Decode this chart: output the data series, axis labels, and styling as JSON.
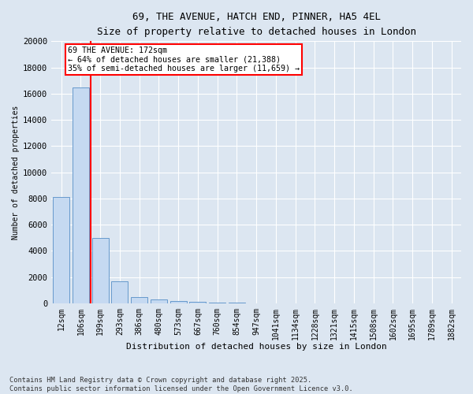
{
  "title_line1": "69, THE AVENUE, HATCH END, PINNER, HA5 4EL",
  "title_line2": "Size of property relative to detached houses in London",
  "xlabel": "Distribution of detached houses by size in London",
  "ylabel": "Number of detached properties",
  "bar_categories": [
    "12sqm",
    "106sqm",
    "199sqm",
    "293sqm",
    "386sqm",
    "480sqm",
    "573sqm",
    "667sqm",
    "760sqm",
    "854sqm",
    "947sqm",
    "1041sqm",
    "1134sqm",
    "1228sqm",
    "1321sqm",
    "1415sqm",
    "1508sqm",
    "1602sqm",
    "1695sqm",
    "1789sqm",
    "1882sqm"
  ],
  "bar_values": [
    8100,
    16500,
    5000,
    1700,
    450,
    280,
    200,
    130,
    80,
    40,
    20,
    10,
    5,
    3,
    2,
    1,
    1,
    1,
    0,
    0,
    0
  ],
  "bar_color": "#c5d9f1",
  "bar_edge_color": "#6699cc",
  "vline_x": 1.5,
  "vline_color": "red",
  "ylim": [
    0,
    20000
  ],
  "yticks": [
    0,
    2000,
    4000,
    6000,
    8000,
    10000,
    12000,
    14000,
    16000,
    18000,
    20000
  ],
  "annotation_text": "69 THE AVENUE: 172sqm\n← 64% of detached houses are smaller (21,388)\n35% of semi-detached houses are larger (11,659) →",
  "annotation_box_color": "red",
  "annotation_bg": "white",
  "background_color": "#dce6f1",
  "plot_bg": "#dce6f1",
  "footer_line1": "Contains HM Land Registry data © Crown copyright and database right 2025.",
  "footer_line2": "Contains public sector information licensed under the Open Government Licence v3.0."
}
